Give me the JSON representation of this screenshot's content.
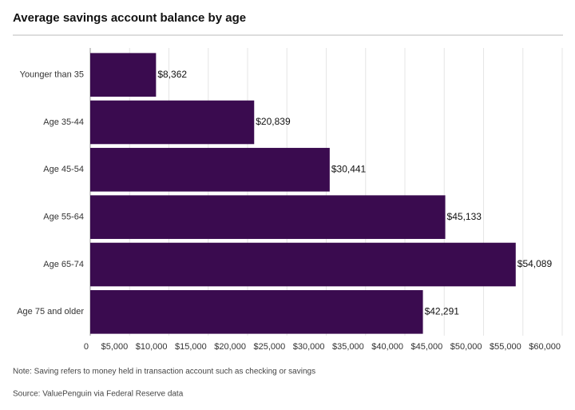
{
  "chart_data": {
    "type": "barh",
    "title": "Average savings account balance by age",
    "categories": [
      "Younger than 35",
      "Age 35-44",
      "Age 45-54",
      "Age 55-64",
      "Age 65-74",
      "Age 75 and older"
    ],
    "values": [
      8362,
      20839,
      30441,
      45133,
      54089,
      42291
    ],
    "value_labels": [
      "$8,362",
      "$20,839",
      "$30,441",
      "$45,133",
      "$54,089",
      "$42,291"
    ],
    "color": "#3a0b4f",
    "xlim": [
      0,
      60000
    ],
    "xticks": [
      0,
      {
        "value": 5000,
        "label": "$5,000"
      },
      {
        "value": 10000,
        "label": "$10,000"
      },
      {
        "value": 15000,
        "label": "$15,000"
      },
      {
        "value": 20000,
        "label": "$20,000"
      },
      {
        "value": 25000,
        "label": "$25,000"
      },
      {
        "value": 30000,
        "label": "$30,000"
      },
      {
        "value": 35000,
        "label": "$35,000"
      },
      {
        "value": 40000,
        "label": "$40,000"
      },
      {
        "value": 45000,
        "label": "$45,000"
      },
      {
        "value": 50000,
        "label": "$50,000"
      },
      {
        "value": 55000,
        "label": "$55,000"
      },
      {
        "value": 60000,
        "label": "$60,000"
      }
    ],
    "grid": true,
    "note": "Note: Saving refers to money held in transaction account such as checking or savings",
    "source": "Source: ValuePenguin via Federal Reserve data"
  }
}
